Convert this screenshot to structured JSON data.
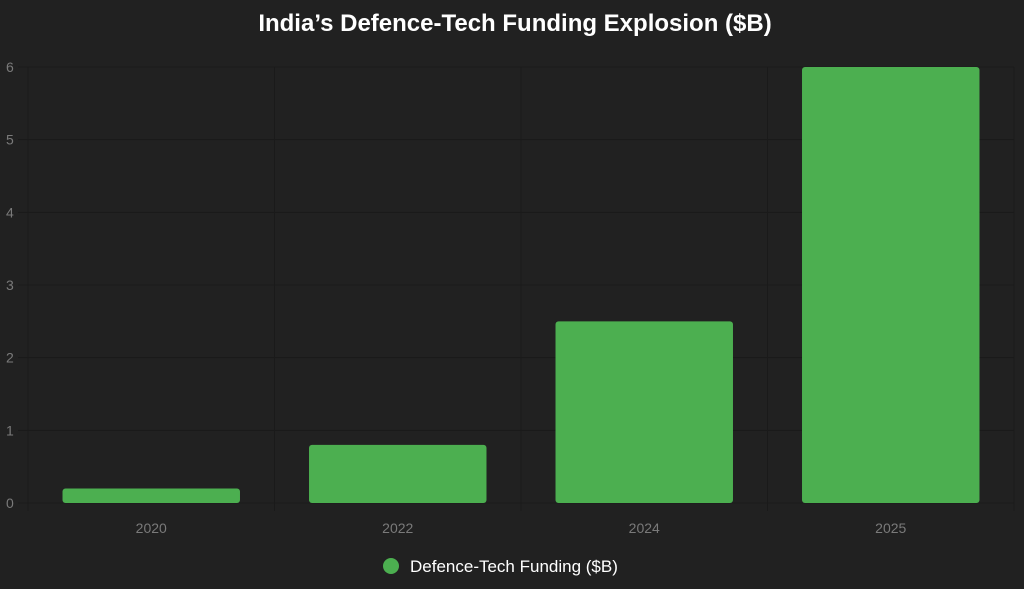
{
  "chart_data": {
    "type": "bar",
    "title": "India’s Defence-Tech Funding Explosion ($B)",
    "xlabel": "",
    "ylabel": "",
    "categories": [
      "2020",
      "2022",
      "2024",
      "2025"
    ],
    "series": [
      {
        "name": "Defence-Tech Funding ($B)",
        "values": [
          0.2,
          0.8,
          2.5,
          6
        ],
        "color": "#4caf50"
      }
    ],
    "ylim": [
      0,
      6
    ],
    "yticks": [
      "0",
      "1",
      "2",
      "3",
      "4",
      "5",
      "6"
    ],
    "grid": true,
    "legend": "bottom-center"
  },
  "colors": {
    "background": "#212121",
    "grid": "#1a1a1a",
    "tick": "#7a7a7a",
    "title": "#ffffff"
  }
}
